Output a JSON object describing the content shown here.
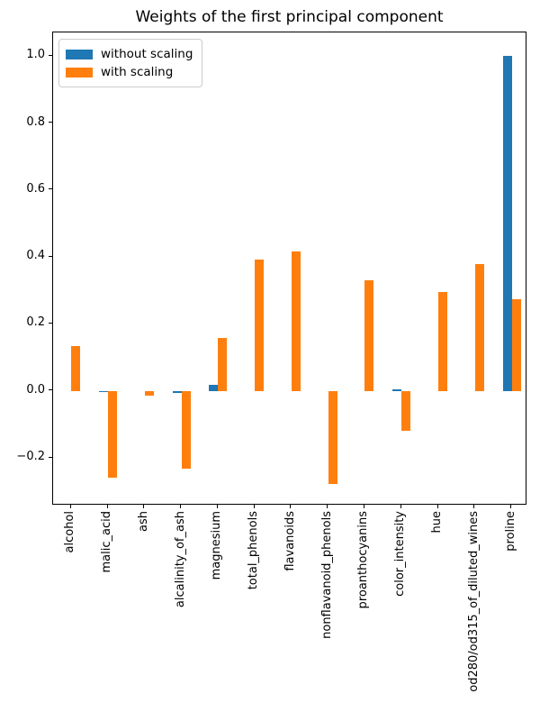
{
  "chart_data": {
    "type": "bar",
    "title": "Weights of the first principal component",
    "categories": [
      "alcohol",
      "malic_acid",
      "ash",
      "alcalinity_of_ash",
      "magnesium",
      "total_phenols",
      "flavanoids",
      "nonflavanoid_phenols",
      "proanthocyanins",
      "color_intensity",
      "hue",
      "od280/od315_of_diluted_wines",
      "proline"
    ],
    "series": [
      {
        "name": "without scaling",
        "color": "#1f77b4",
        "values": [
          0.0,
          -0.002,
          0.0,
          -0.005,
          0.018,
          0.0,
          0.0,
          0.0,
          0.0,
          0.004,
          0.0,
          0.0,
          1.0
        ]
      },
      {
        "name": "with scaling",
        "color": "#ff7f0e",
        "values": [
          0.134,
          -0.258,
          -0.013,
          -0.232,
          0.158,
          0.393,
          0.417,
          -0.278,
          0.33,
          -0.118,
          0.296,
          0.379,
          0.275
        ]
      }
    ],
    "yticks": [
      1.0,
      0.8,
      0.6,
      0.4,
      0.2,
      0.0,
      -0.2
    ],
    "ytick_labels": [
      "1.0",
      "0.8",
      "0.6",
      "0.4",
      "0.2",
      "0.0",
      "−0.2"
    ],
    "ylim": [
      -0.343,
      1.071
    ],
    "xlabel": "",
    "ylabel": "",
    "grid": false,
    "legend_position": "upper left",
    "axis_color": "#000000",
    "text_color": "#000000"
  }
}
